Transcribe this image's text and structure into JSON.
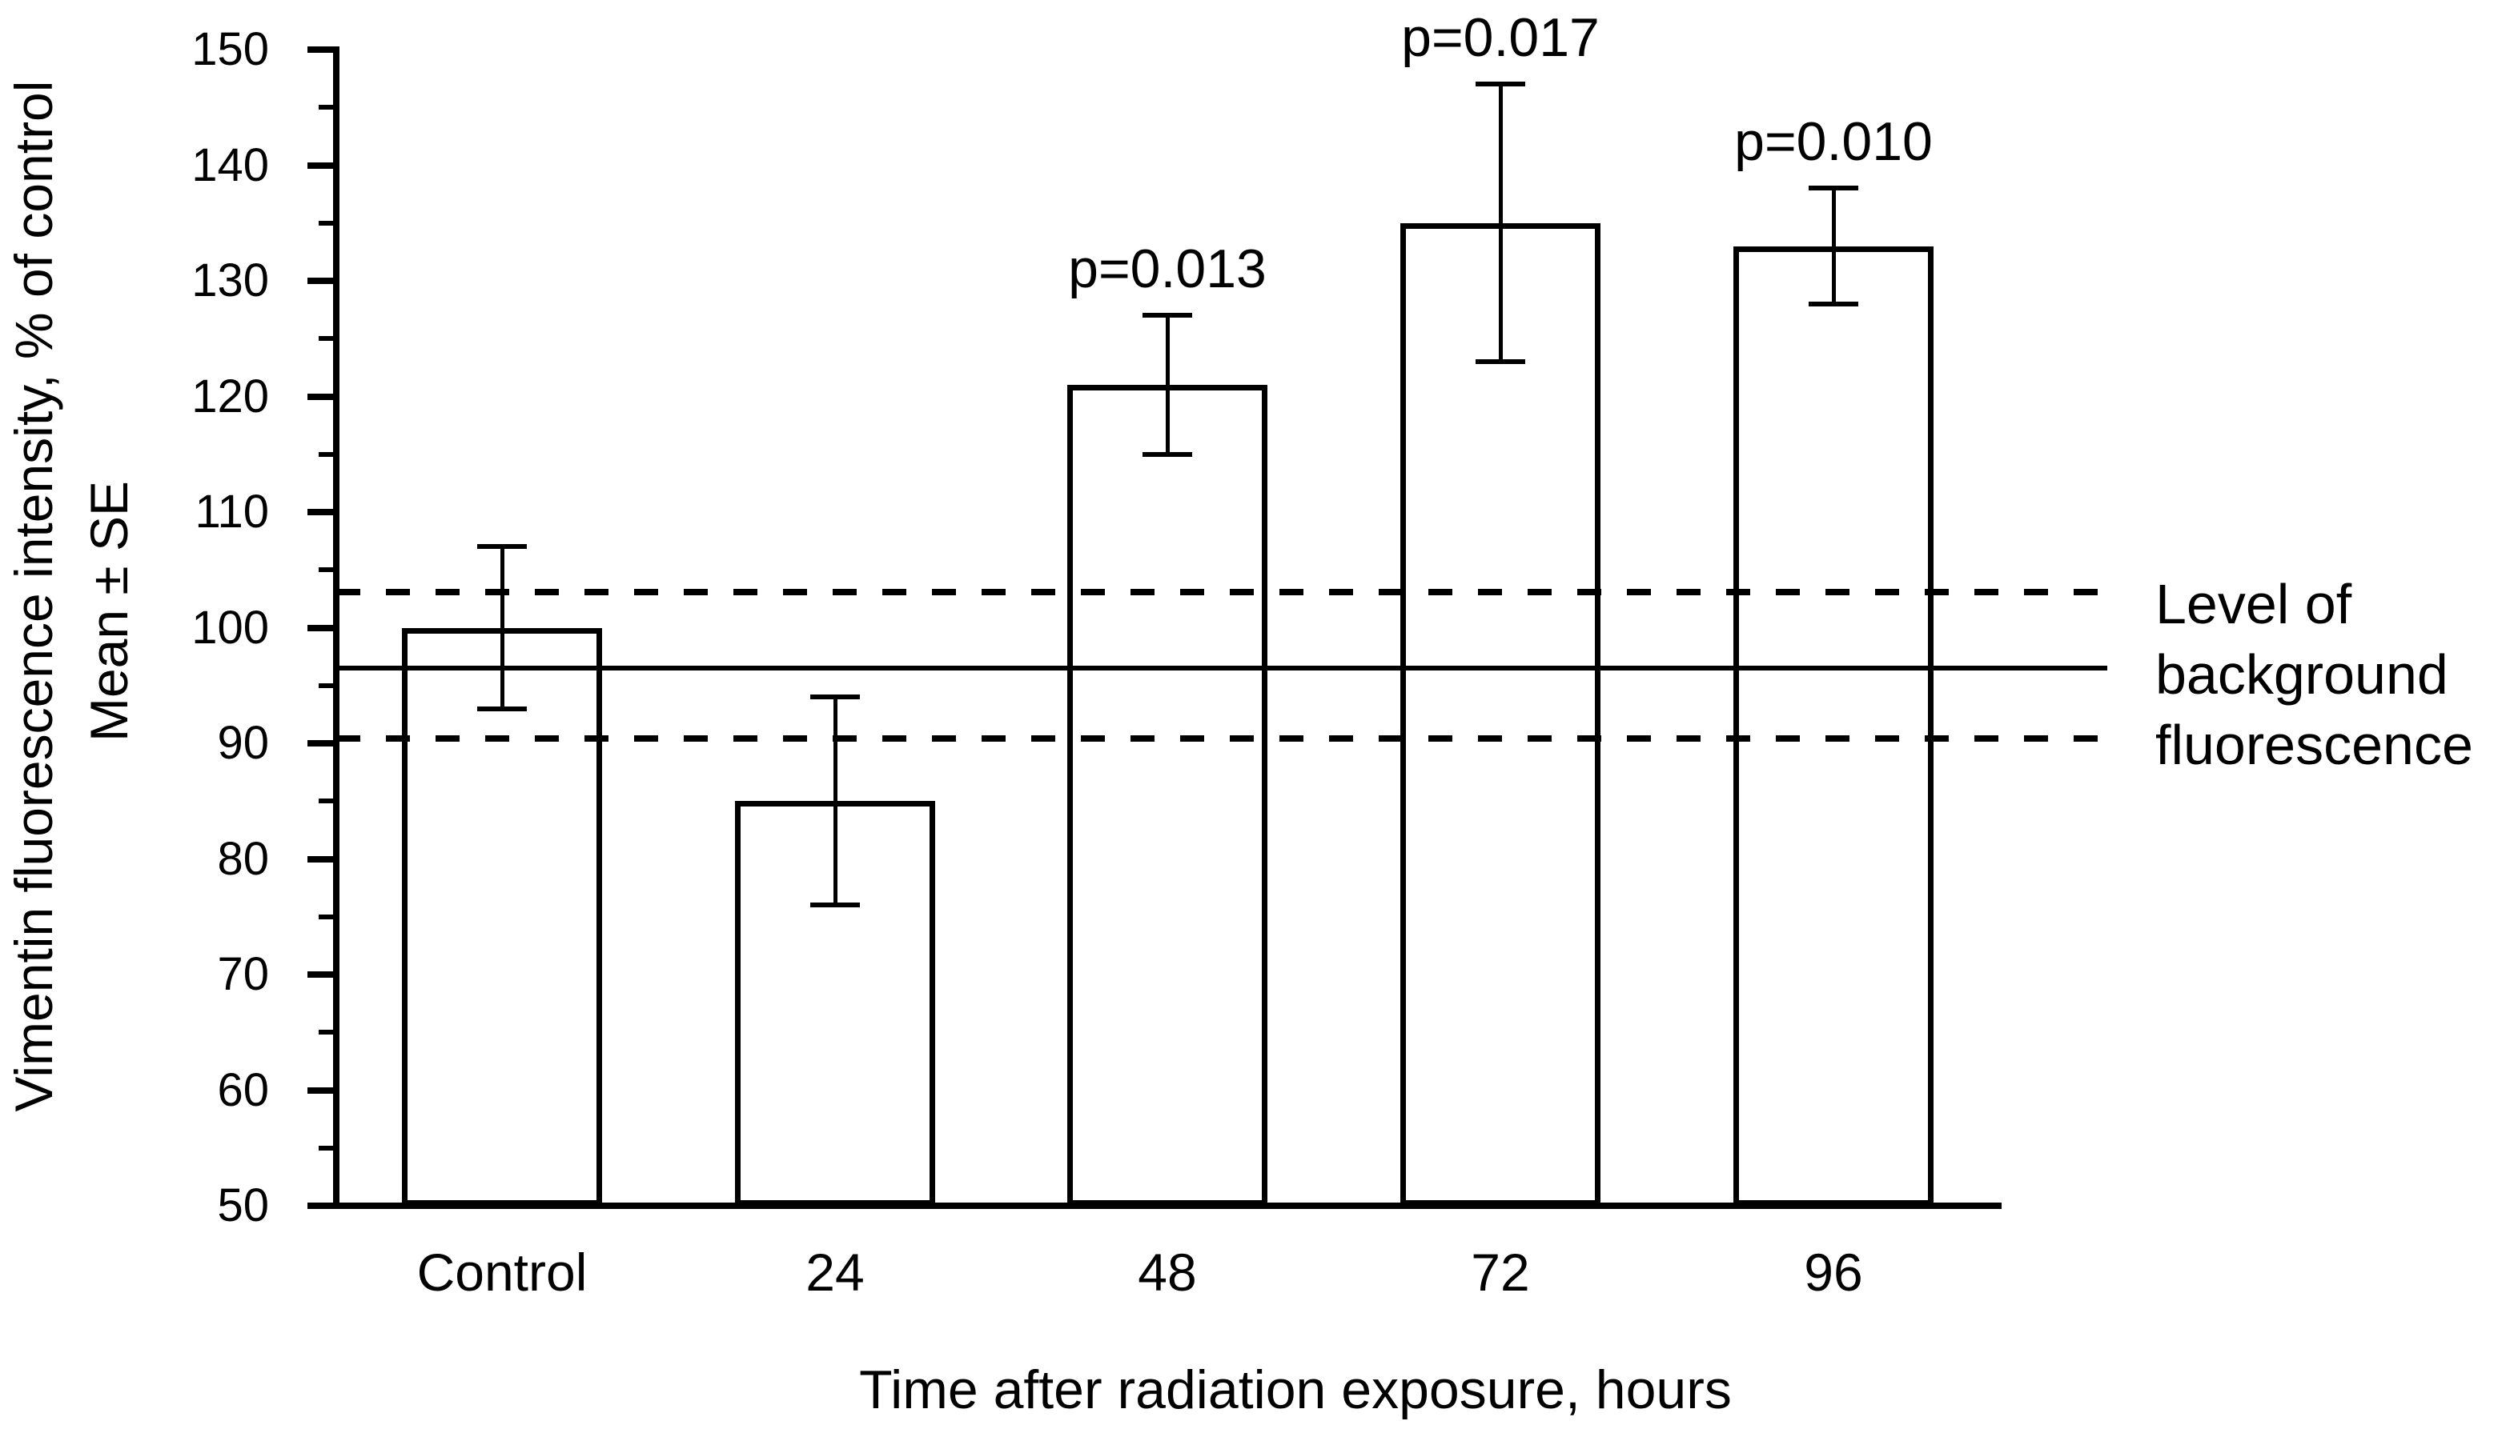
{
  "y_axis": {
    "title_line1": "Vimentin fluorescence intensity, % of control",
    "title_line2": "Mean ± SE"
  },
  "x_axis": {
    "title": "Time after radiation exposure, hours"
  },
  "annotation": {
    "lines": [
      "Level of",
      "background",
      "fluorescence"
    ]
  },
  "chart_data": {
    "type": "bar",
    "title": "",
    "categories": [
      "Control",
      "24",
      "48",
      "72",
      "96"
    ],
    "values": [
      100,
      85,
      121,
      135,
      133
    ],
    "error_low": [
      93,
      76,
      115,
      123,
      128
    ],
    "error_high": [
      107,
      94,
      127,
      147,
      138
    ],
    "p_labels": [
      "",
      "",
      "p=0.013",
      "p=0.017",
      "p=0.010"
    ],
    "xlabel": "Time after radiation exposure, hours",
    "ylabel": "Vimentin fluorescence intensity, % of control — Mean ± SE",
    "ylim": [
      50,
      150
    ],
    "y_tick_step_major": 10,
    "y_tick_step_minor": 5,
    "y_tick_labels": [
      50,
      60,
      70,
      80,
      90,
      100,
      110,
      120,
      130,
      140,
      150
    ],
    "reference_lines": [
      {
        "value": 103.1,
        "style": "dashed",
        "name": "background-upper-bound",
        "label": ""
      },
      {
        "value": 96.5,
        "style": "solid",
        "name": "background-mean-line",
        "label": "Level of background fluorescence"
      },
      {
        "value": 90.4,
        "style": "dashed",
        "name": "background-lower-bound",
        "label": ""
      }
    ],
    "bar_fill_color": "#ffffff",
    "line_color": "#000000",
    "grid": false,
    "legend": false
  }
}
